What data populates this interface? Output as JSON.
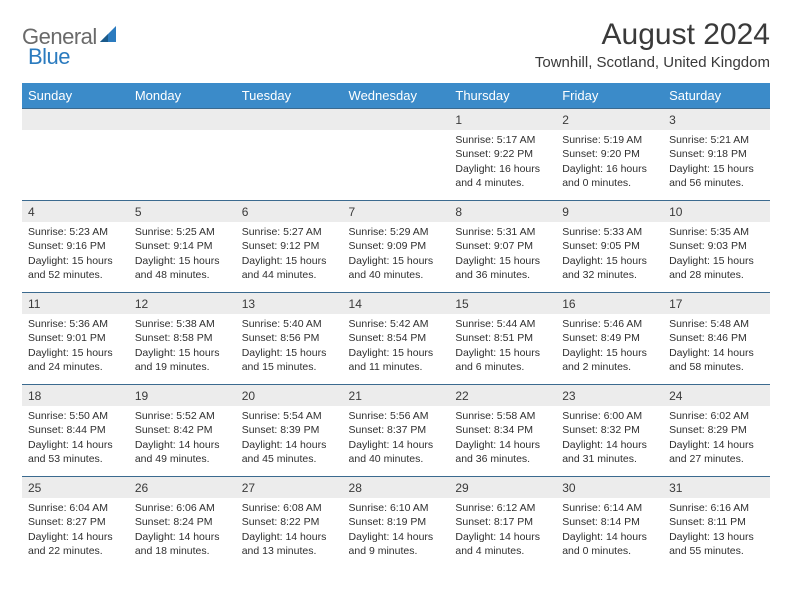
{
  "logo": {
    "text1": "General",
    "text2": "Blue"
  },
  "title": "August 2024",
  "location": "Townhill, Scotland, United Kingdom",
  "colors": {
    "header_bg": "#3b8bc9",
    "header_fg": "#ffffff",
    "row_separator": "#3b6a8f",
    "daynum_bg": "#ececec",
    "logo_gray": "#6a6a6a",
    "logo_blue": "#2b7bbf",
    "text": "#2f2f2f"
  },
  "typography": {
    "title_fontsize": 30,
    "location_fontsize": 15,
    "dayheader_fontsize": 13,
    "cell_fontsize": 10.5,
    "logo_fontsize": 22
  },
  "day_headers": [
    "Sunday",
    "Monday",
    "Tuesday",
    "Wednesday",
    "Thursday",
    "Friday",
    "Saturday"
  ],
  "weeks": [
    [
      null,
      null,
      null,
      null,
      {
        "n": "1",
        "sunrise": "Sunrise: 5:17 AM",
        "sunset": "Sunset: 9:22 PM",
        "daylight": "Daylight: 16 hours and 4 minutes."
      },
      {
        "n": "2",
        "sunrise": "Sunrise: 5:19 AM",
        "sunset": "Sunset: 9:20 PM",
        "daylight": "Daylight: 16 hours and 0 minutes."
      },
      {
        "n": "3",
        "sunrise": "Sunrise: 5:21 AM",
        "sunset": "Sunset: 9:18 PM",
        "daylight": "Daylight: 15 hours and 56 minutes."
      }
    ],
    [
      {
        "n": "4",
        "sunrise": "Sunrise: 5:23 AM",
        "sunset": "Sunset: 9:16 PM",
        "daylight": "Daylight: 15 hours and 52 minutes."
      },
      {
        "n": "5",
        "sunrise": "Sunrise: 5:25 AM",
        "sunset": "Sunset: 9:14 PM",
        "daylight": "Daylight: 15 hours and 48 minutes."
      },
      {
        "n": "6",
        "sunrise": "Sunrise: 5:27 AM",
        "sunset": "Sunset: 9:12 PM",
        "daylight": "Daylight: 15 hours and 44 minutes."
      },
      {
        "n": "7",
        "sunrise": "Sunrise: 5:29 AM",
        "sunset": "Sunset: 9:09 PM",
        "daylight": "Daylight: 15 hours and 40 minutes."
      },
      {
        "n": "8",
        "sunrise": "Sunrise: 5:31 AM",
        "sunset": "Sunset: 9:07 PM",
        "daylight": "Daylight: 15 hours and 36 minutes."
      },
      {
        "n": "9",
        "sunrise": "Sunrise: 5:33 AM",
        "sunset": "Sunset: 9:05 PM",
        "daylight": "Daylight: 15 hours and 32 minutes."
      },
      {
        "n": "10",
        "sunrise": "Sunrise: 5:35 AM",
        "sunset": "Sunset: 9:03 PM",
        "daylight": "Daylight: 15 hours and 28 minutes."
      }
    ],
    [
      {
        "n": "11",
        "sunrise": "Sunrise: 5:36 AM",
        "sunset": "Sunset: 9:01 PM",
        "daylight": "Daylight: 15 hours and 24 minutes."
      },
      {
        "n": "12",
        "sunrise": "Sunrise: 5:38 AM",
        "sunset": "Sunset: 8:58 PM",
        "daylight": "Daylight: 15 hours and 19 minutes."
      },
      {
        "n": "13",
        "sunrise": "Sunrise: 5:40 AM",
        "sunset": "Sunset: 8:56 PM",
        "daylight": "Daylight: 15 hours and 15 minutes."
      },
      {
        "n": "14",
        "sunrise": "Sunrise: 5:42 AM",
        "sunset": "Sunset: 8:54 PM",
        "daylight": "Daylight: 15 hours and 11 minutes."
      },
      {
        "n": "15",
        "sunrise": "Sunrise: 5:44 AM",
        "sunset": "Sunset: 8:51 PM",
        "daylight": "Daylight: 15 hours and 6 minutes."
      },
      {
        "n": "16",
        "sunrise": "Sunrise: 5:46 AM",
        "sunset": "Sunset: 8:49 PM",
        "daylight": "Daylight: 15 hours and 2 minutes."
      },
      {
        "n": "17",
        "sunrise": "Sunrise: 5:48 AM",
        "sunset": "Sunset: 8:46 PM",
        "daylight": "Daylight: 14 hours and 58 minutes."
      }
    ],
    [
      {
        "n": "18",
        "sunrise": "Sunrise: 5:50 AM",
        "sunset": "Sunset: 8:44 PM",
        "daylight": "Daylight: 14 hours and 53 minutes."
      },
      {
        "n": "19",
        "sunrise": "Sunrise: 5:52 AM",
        "sunset": "Sunset: 8:42 PM",
        "daylight": "Daylight: 14 hours and 49 minutes."
      },
      {
        "n": "20",
        "sunrise": "Sunrise: 5:54 AM",
        "sunset": "Sunset: 8:39 PM",
        "daylight": "Daylight: 14 hours and 45 minutes."
      },
      {
        "n": "21",
        "sunrise": "Sunrise: 5:56 AM",
        "sunset": "Sunset: 8:37 PM",
        "daylight": "Daylight: 14 hours and 40 minutes."
      },
      {
        "n": "22",
        "sunrise": "Sunrise: 5:58 AM",
        "sunset": "Sunset: 8:34 PM",
        "daylight": "Daylight: 14 hours and 36 minutes."
      },
      {
        "n": "23",
        "sunrise": "Sunrise: 6:00 AM",
        "sunset": "Sunset: 8:32 PM",
        "daylight": "Daylight: 14 hours and 31 minutes."
      },
      {
        "n": "24",
        "sunrise": "Sunrise: 6:02 AM",
        "sunset": "Sunset: 8:29 PM",
        "daylight": "Daylight: 14 hours and 27 minutes."
      }
    ],
    [
      {
        "n": "25",
        "sunrise": "Sunrise: 6:04 AM",
        "sunset": "Sunset: 8:27 PM",
        "daylight": "Daylight: 14 hours and 22 minutes."
      },
      {
        "n": "26",
        "sunrise": "Sunrise: 6:06 AM",
        "sunset": "Sunset: 8:24 PM",
        "daylight": "Daylight: 14 hours and 18 minutes."
      },
      {
        "n": "27",
        "sunrise": "Sunrise: 6:08 AM",
        "sunset": "Sunset: 8:22 PM",
        "daylight": "Daylight: 14 hours and 13 minutes."
      },
      {
        "n": "28",
        "sunrise": "Sunrise: 6:10 AM",
        "sunset": "Sunset: 8:19 PM",
        "daylight": "Daylight: 14 hours and 9 minutes."
      },
      {
        "n": "29",
        "sunrise": "Sunrise: 6:12 AM",
        "sunset": "Sunset: 8:17 PM",
        "daylight": "Daylight: 14 hours and 4 minutes."
      },
      {
        "n": "30",
        "sunrise": "Sunrise: 6:14 AM",
        "sunset": "Sunset: 8:14 PM",
        "daylight": "Daylight: 14 hours and 0 minutes."
      },
      {
        "n": "31",
        "sunrise": "Sunrise: 6:16 AM",
        "sunset": "Sunset: 8:11 PM",
        "daylight": "Daylight: 13 hours and 55 minutes."
      }
    ]
  ]
}
